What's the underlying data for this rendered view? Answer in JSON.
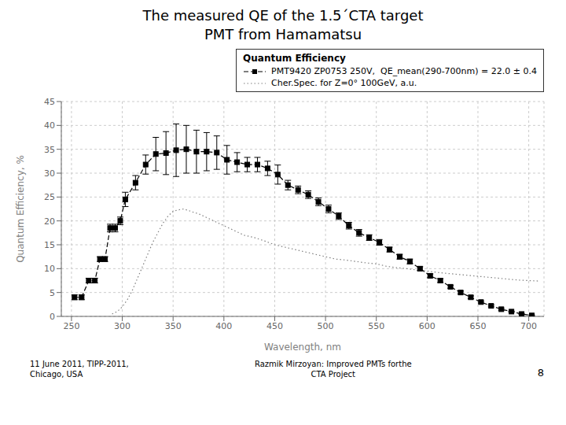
{
  "chart_data": {
    "type": "line",
    "title": "The measured QE of the 1.5´CTA target\nPMT from Hamamatsu",
    "x_label": "Wavelength, nm",
    "y_label": "Quantum Efficiency, %",
    "annotations": [
      "11 June 2011, TIPP-2011,\nChicago, USA",
      "Razmik Mirzoyan: Improved PMTs forthe\nCTA Project",
      "8"
    ],
    "legend_title": "Quantum Efficiency",
    "legend": "upper right",
    "grid": true,
    "xlim": [
      240,
      715
    ],
    "ylim": [
      0,
      45
    ],
    "xticks": [
      250,
      300,
      350,
      400,
      450,
      500,
      550,
      600,
      650,
      700
    ],
    "yticks": [
      0,
      5,
      10,
      15,
      20,
      25,
      30,
      35,
      40,
      45
    ],
    "series": [
      {
        "name": "PMT9420 ZP0753 250V,  QE_mean(290-700nm) = 22.0 ± 0.4",
        "color": "black",
        "marker": "square",
        "line_style": "dashed",
        "x": [
          253,
          260,
          267,
          273,
          278,
          283,
          288,
          293,
          298,
          303,
          313,
          323,
          333,
          343,
          353,
          363,
          373,
          383,
          393,
          403,
          413,
          423,
          433,
          443,
          453,
          463,
          473,
          483,
          493,
          503,
          513,
          523,
          533,
          543,
          553,
          563,
          573,
          583,
          593,
          603,
          613,
          623,
          633,
          643,
          653,
          663,
          673,
          683,
          693,
          703
        ],
        "values": [
          4.0,
          4.0,
          7.5,
          7.5,
          12.0,
          12.0,
          18.5,
          18.5,
          20.0,
          24.5,
          28.0,
          31.8,
          34.0,
          34.2,
          34.8,
          35.0,
          34.5,
          34.5,
          34.3,
          32.8,
          32.3,
          31.8,
          31.8,
          31.0,
          29.7,
          27.5,
          26.5,
          25.5,
          24.0,
          22.5,
          21.0,
          19.0,
          17.5,
          16.5,
          15.5,
          14.0,
          12.5,
          11.5,
          10.0,
          8.5,
          7.5,
          6.2,
          5.0,
          4.0,
          3.0,
          2.2,
          1.5,
          1.0,
          0.5,
          0.2
        ],
        "errors": [
          0.5,
          0.5,
          0.5,
          0.5,
          0.5,
          0.5,
          0.8,
          0.8,
          0.8,
          1.5,
          1.5,
          2.0,
          3.5,
          4.5,
          5.5,
          5.0,
          4.5,
          4.0,
          3.5,
          3.0,
          2.0,
          1.5,
          1.5,
          1.5,
          2.0,
          1.0,
          0.8,
          0.8,
          0.8,
          0.8,
          0.7,
          0.7,
          0.7,
          0.6,
          0.6,
          0.5,
          0.5,
          0.5,
          0.4,
          0.4,
          0.4,
          0.3,
          0.3,
          0.3,
          0.2,
          0.2,
          0.2,
          0.1,
          0.1,
          0.1
        ]
      },
      {
        "name": "Cher.Spec. for Z=0° 100GeV, a.u.",
        "color": "gray",
        "line_style": "dotted",
        "x": [
          290,
          295,
          300,
          305,
          310,
          315,
          320,
          325,
          330,
          335,
          340,
          345,
          350,
          355,
          360,
          365,
          370,
          375,
          380,
          385,
          390,
          395,
          400,
          410,
          420,
          430,
          440,
          450,
          460,
          470,
          480,
          490,
          500,
          510,
          520,
          530,
          540,
          550,
          560,
          570,
          580,
          590,
          600,
          610,
          620,
          630,
          640,
          650,
          660,
          670,
          680,
          690,
          700,
          710
        ],
        "values": [
          0.5,
          1.0,
          2.0,
          3.5,
          5.5,
          8.0,
          10.5,
          13.0,
          15.5,
          17.5,
          19.5,
          21.0,
          22.0,
          22.3,
          22.5,
          22.2,
          21.8,
          21.5,
          21.0,
          20.5,
          20.0,
          19.5,
          19.0,
          18.0,
          17.0,
          16.5,
          15.8,
          15.0,
          14.5,
          14.0,
          13.5,
          13.0,
          12.5,
          12.0,
          11.8,
          11.5,
          11.2,
          11.0,
          10.5,
          10.2,
          10.0,
          9.7,
          9.5,
          9.2,
          9.0,
          8.8,
          8.6,
          8.4,
          8.2,
          8.0,
          7.8,
          7.6,
          7.5,
          7.4
        ]
      }
    ]
  }
}
